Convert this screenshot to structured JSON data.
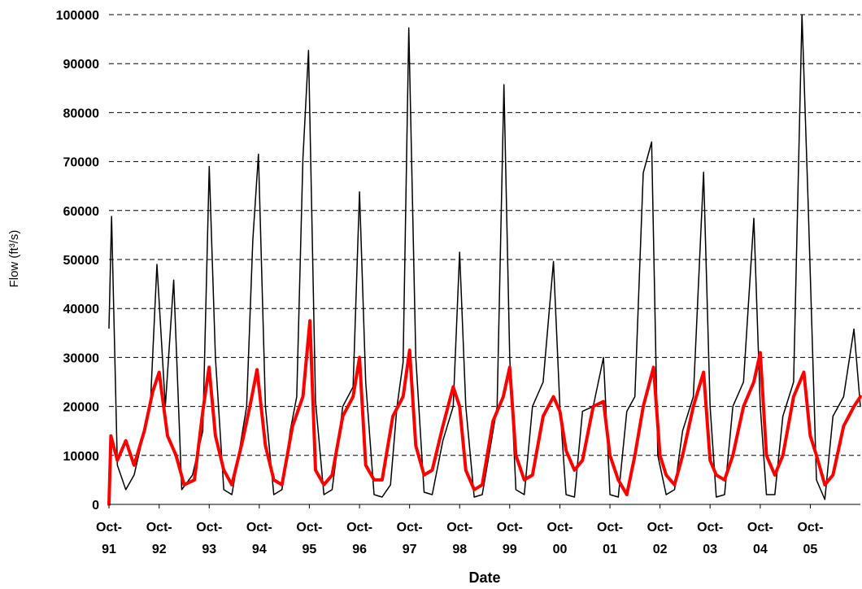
{
  "chart_data": {
    "type": "line",
    "title": "",
    "xlabel": "Date",
    "ylabel": "Flow (ft³/s)",
    "ylim": [
      0,
      100000
    ],
    "xlim": [
      "1991-10-01",
      "2006-10-01"
    ],
    "grid": "horizontal dashed",
    "legend": "none",
    "y_ticks": [
      "0",
      "10000",
      "20000",
      "30000",
      "40000",
      "50000",
      "60000",
      "70000",
      "80000",
      "90000",
      "100000"
    ],
    "x_ticks": [
      {
        "top": "Oct-",
        "bottom": "91",
        "date": "1991-10-01"
      },
      {
        "top": "Oct-",
        "bottom": "92",
        "date": "1992-10-01"
      },
      {
        "top": "Oct-",
        "bottom": "93",
        "date": "1993-10-01"
      },
      {
        "top": "Oct-",
        "bottom": "94",
        "date": "1994-10-01"
      },
      {
        "top": "Oct-",
        "bottom": "95",
        "date": "1995-10-01"
      },
      {
        "top": "Oct-",
        "bottom": "96",
        "date": "1996-10-01"
      },
      {
        "top": "Oct-",
        "bottom": "97",
        "date": "1997-10-01"
      },
      {
        "top": "Oct-",
        "bottom": "98",
        "date": "1998-10-01"
      },
      {
        "top": "Oct-",
        "bottom": "99",
        "date": "1999-10-01"
      },
      {
        "top": "Oct-",
        "bottom": "00",
        "date": "2000-10-01"
      },
      {
        "top": "Oct-",
        "bottom": "01",
        "date": "2001-10-01"
      },
      {
        "top": "Oct-",
        "bottom": "02",
        "date": "2002-10-01"
      },
      {
        "top": "Oct-",
        "bottom": "03",
        "date": "2003-10-01"
      },
      {
        "top": "Oct-",
        "bottom": "04",
        "date": "2004-10-01"
      },
      {
        "top": "Oct-",
        "bottom": "05",
        "date": "2005-10-01"
      }
    ],
    "series": [
      {
        "color": "#000000",
        "x": [
          "1991-10-01",
          "1991-10-20",
          "1991-12-01",
          "1992-02-01",
          "1992-04-01",
          "1992-06-15",
          "1992-08-01",
          "1992-09-15",
          "1992-11-15",
          "1993-01-15",
          "1993-03-15",
          "1993-06-01",
          "1993-08-15",
          "1993-10-01",
          "1993-11-15",
          "1994-01-15",
          "1994-03-15",
          "1994-05-15",
          "1994-07-01",
          "1994-08-15",
          "1994-09-25",
          "1994-11-15",
          "1995-01-15",
          "1995-03-15",
          "1995-05-15",
          "1995-07-01",
          "1995-08-15",
          "1995-09-25",
          "1995-11-15",
          "1996-01-15",
          "1996-03-15",
          "1996-06-01",
          "1996-08-15",
          "1996-10-01",
          "1996-11-15",
          "1997-01-15",
          "1997-03-15",
          "1997-05-15",
          "1997-07-01",
          "1997-08-15",
          "1997-09-25",
          "1997-11-15",
          "1998-01-15",
          "1998-03-15",
          "1998-06-01",
          "1998-08-15",
          "1998-10-01",
          "1998-11-15",
          "1999-01-15",
          "1999-03-15",
          "1999-05-15",
          "1999-07-01",
          "1999-08-20",
          "1999-10-01",
          "1999-11-15",
          "2000-01-15",
          "2000-03-15",
          "2000-06-01",
          "2000-08-15",
          "2000-10-01",
          "2000-11-15",
          "2001-01-15",
          "2001-03-15",
          "2001-06-01",
          "2001-08-15",
          "2001-10-01",
          "2001-12-01",
          "2002-02-01",
          "2002-04-01",
          "2002-06-01",
          "2002-08-01",
          "2002-09-15",
          "2002-11-15",
          "2003-01-15",
          "2003-03-15",
          "2003-06-01",
          "2003-08-15",
          "2003-10-01",
          "2003-11-15",
          "2004-01-15",
          "2004-03-15",
          "2004-06-01",
          "2004-08-15",
          "2004-10-01",
          "2004-11-15",
          "2005-01-15",
          "2005-03-15",
          "2005-06-01",
          "2005-08-01",
          "2005-09-15",
          "2005-11-15",
          "2006-01-15",
          "2006-03-15",
          "2006-06-01",
          "2006-08-15",
          "2006-10-01"
        ],
        "values": [
          36000,
          58800,
          8000,
          3000,
          6000,
          15000,
          22000,
          49000,
          20000,
          45800,
          3000,
          6000,
          15000,
          69000,
          30000,
          3000,
          2000,
          12000,
          20000,
          54000,
          71500,
          20000,
          2000,
          3000,
          15000,
          22000,
          70600,
          92700,
          21000,
          2000,
          3000,
          20000,
          24000,
          63800,
          25000,
          2000,
          1500,
          4000,
          20000,
          29000,
          97300,
          30000,
          2500,
          2000,
          13000,
          20000,
          51500,
          20000,
          1500,
          2000,
          12000,
          20000,
          85700,
          30000,
          3000,
          2000,
          20000,
          25000,
          49600,
          20000,
          2000,
          1500,
          19000,
          20000,
          30000,
          2000,
          1500,
          19000,
          22000,
          67700,
          74000,
          10000,
          2000,
          3000,
          15000,
          22000,
          67800,
          20000,
          1500,
          2000,
          20000,
          25000,
          58400,
          20000,
          2000,
          2000,
          18000,
          25000,
          100000,
          61900,
          5000,
          1000,
          18000,
          22000,
          35800,
          20000
        ]
      },
      {
        "color": "#ff0000",
        "x": [
          "1991-10-01",
          "1991-10-15",
          "1991-12-01",
          "1992-02-01",
          "1992-04-01",
          "1992-06-15",
          "1992-08-15",
          "1992-10-01",
          "1992-12-01",
          "1993-02-01",
          "1993-04-01",
          "1993-06-15",
          "1993-08-15",
          "1993-09-30",
          "1993-11-15",
          "1994-01-15",
          "1994-03-15",
          "1994-06-01",
          "1994-08-01",
          "1994-09-15",
          "1994-11-15",
          "1995-01-15",
          "1995-03-15",
          "1995-06-01",
          "1995-08-15",
          "1995-10-05",
          "1995-11-15",
          "1996-01-15",
          "1996-03-15",
          "1996-06-01",
          "1996-08-15",
          "1996-10-01",
          "1996-11-15",
          "1997-01-15",
          "1997-03-15",
          "1997-06-01",
          "1997-08-15",
          "1997-10-01",
          "1997-11-15",
          "1998-01-15",
          "1998-03-15",
          "1998-06-01",
          "1998-08-15",
          "1998-10-01",
          "1998-11-15",
          "1999-01-15",
          "1999-03-15",
          "1999-06-01",
          "1999-08-15",
          "1999-10-01",
          "1999-11-15",
          "2000-01-15",
          "2000-03-15",
          "2000-06-01",
          "2000-08-15",
          "2000-10-01",
          "2000-11-15",
          "2001-01-15",
          "2001-03-15",
          "2001-06-01",
          "2001-08-15",
          "2001-10-01",
          "2001-12-01",
          "2002-02-01",
          "2002-04-01",
          "2002-06-01",
          "2002-08-15",
          "2002-10-01",
          "2002-11-15",
          "2003-01-15",
          "2003-03-15",
          "2003-06-01",
          "2003-08-15",
          "2003-10-01",
          "2003-11-15",
          "2004-01-15",
          "2004-03-15",
          "2004-06-01",
          "2004-08-15",
          "2004-10-01",
          "2004-11-15",
          "2005-01-15",
          "2005-03-15",
          "2005-06-01",
          "2005-08-15",
          "2005-10-01",
          "2005-11-15",
          "2006-01-15",
          "2006-03-15",
          "2006-06-01",
          "2006-08-15",
          "2006-10-01"
        ],
        "values": [
          0,
          14000,
          9000,
          13000,
          8000,
          15000,
          23000,
          27000,
          14000,
          10000,
          4000,
          5000,
          19000,
          28000,
          14000,
          7000,
          4000,
          13000,
          21000,
          27500,
          12000,
          5000,
          4000,
          16000,
          22000,
          37500,
          7000,
          4000,
          6000,
          18000,
          22000,
          30000,
          8000,
          5000,
          5000,
          18000,
          22000,
          31500,
          12000,
          6000,
          7000,
          16000,
          24000,
          20000,
          7000,
          3000,
          4000,
          17000,
          22000,
          28000,
          10000,
          5000,
          6000,
          18000,
          22000,
          19000,
          11000,
          7000,
          9000,
          20000,
          21000,
          10000,
          5000,
          2000,
          10000,
          20000,
          28000,
          10000,
          6000,
          4000,
          10000,
          20000,
          27000,
          9000,
          6000,
          5000,
          10000,
          20000,
          25000,
          31000,
          10000,
          6000,
          10000,
          22000,
          27000,
          14000,
          10000,
          4000,
          6000,
          16000,
          20000,
          22000
        ]
      }
    ]
  }
}
